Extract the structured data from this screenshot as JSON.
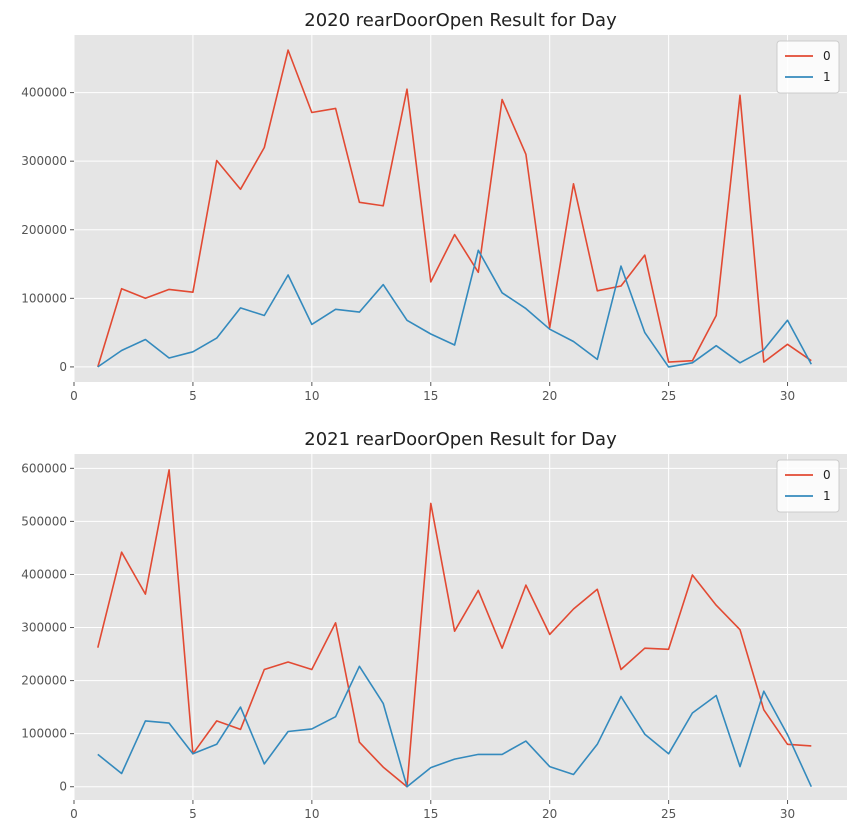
{
  "chart_data": [
    {
      "type": "line",
      "title": "2020 rearDoorOpen Result for Day",
      "xlabel": "",
      "ylabel": "",
      "xlim": [
        0,
        32.5
      ],
      "ylim": [
        -22000,
        484000
      ],
      "xticks": [
        0,
        5,
        10,
        15,
        20,
        25,
        30
      ],
      "yticks": [
        0,
        100000,
        200000,
        300000,
        400000
      ],
      "grid": true,
      "legend_position": "top-right",
      "x": [
        1,
        2,
        3,
        4,
        5,
        6,
        7,
        8,
        9,
        10,
        11,
        12,
        13,
        14,
        15,
        16,
        17,
        18,
        19,
        20,
        21,
        22,
        23,
        24,
        25,
        26,
        27,
        28,
        29,
        30,
        31
      ],
      "series": [
        {
          "name": "0",
          "color": "#E24A33",
          "values": [
            0,
            114000,
            100000,
            113000,
            109000,
            301000,
            259000,
            320000,
            462000,
            371000,
            377000,
            240000,
            235000,
            405000,
            124000,
            193000,
            138000,
            390000,
            310000,
            57000,
            267000,
            111000,
            118000,
            163000,
            7000,
            9000,
            75000,
            396000,
            7000,
            33000,
            9000
          ]
        },
        {
          "name": "1",
          "color": "#348ABD",
          "values": [
            0,
            24000,
            40000,
            13000,
            22000,
            42000,
            86000,
            75000,
            134000,
            62000,
            84000,
            80000,
            120000,
            68000,
            48000,
            32000,
            170000,
            108000,
            85000,
            55000,
            37000,
            11000,
            147000,
            50000,
            0,
            6000,
            31000,
            6000,
            25000,
            68000,
            4000
          ]
        }
      ]
    },
    {
      "type": "line",
      "title": "2021 rearDoorOpen Result for Day",
      "xlabel": "",
      "ylabel": "",
      "xlim": [
        0,
        32.5
      ],
      "ylim": [
        -25000,
        627000
      ],
      "xticks": [
        0,
        5,
        10,
        15,
        20,
        25,
        30
      ],
      "yticks": [
        0,
        100000,
        200000,
        300000,
        400000,
        500000,
        600000
      ],
      "grid": true,
      "legend_position": "top-right",
      "x": [
        1,
        2,
        3,
        4,
        5,
        6,
        7,
        8,
        9,
        10,
        11,
        12,
        13,
        14,
        15,
        16,
        17,
        18,
        19,
        20,
        21,
        22,
        23,
        24,
        25,
        26,
        27,
        28,
        29,
        30,
        31
      ],
      "series": [
        {
          "name": "0",
          "color": "#E24A33",
          "values": [
            262000,
            442000,
            363000,
            597000,
            62000,
            124000,
            108000,
            221000,
            235000,
            221000,
            309000,
            84000,
            37000,
            0,
            534000,
            293000,
            370000,
            261000,
            380000,
            287000,
            335000,
            372000,
            221000,
            261000,
            259000,
            399000,
            342000,
            296000,
            145000,
            80000,
            77000
          ]
        },
        {
          "name": "1",
          "color": "#348ABD",
          "values": [
            61000,
            25000,
            124000,
            120000,
            62000,
            80000,
            150000,
            43000,
            104000,
            109000,
            132000,
            227000,
            157000,
            0,
            36000,
            52000,
            61000,
            61000,
            86000,
            38000,
            23000,
            80000,
            170000,
            99000,
            62000,
            139000,
            172000,
            38000,
            180000,
            98000,
            0
          ]
        }
      ]
    }
  ]
}
